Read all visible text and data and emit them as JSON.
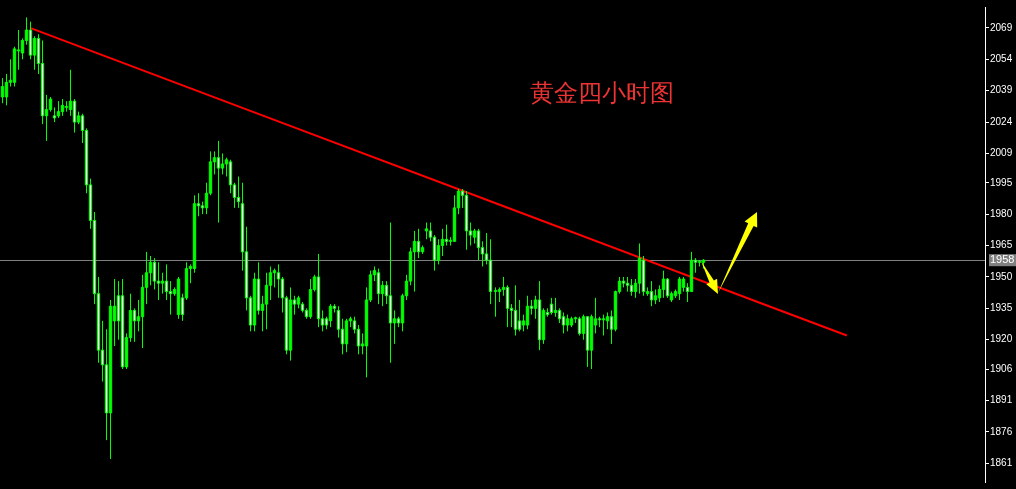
{
  "chart_data": {
    "type": "candlestick",
    "title": "黄金四小时图",
    "tick_labels": "y",
    "grid": false,
    "legend": false,
    "ylim": [
      1852,
      2079
    ],
    "yticks": [
      1861,
      1876,
      1891,
      1906,
      1920,
      1935,
      1950,
      1965,
      1980,
      1995,
      2009,
      2024,
      2039,
      2054,
      2069
    ],
    "ref_lines": [
      {
        "axis": "y",
        "value": 1958,
        "label": "1958",
        "color": "#808080"
      }
    ],
    "categories": [
      null,
      null,
      null,
      null,
      null,
      null,
      null,
      null,
      null,
      null,
      null,
      null,
      null,
      null,
      null,
      null,
      null,
      null,
      null,
      null,
      null,
      null,
      null,
      null,
      null,
      null,
      null,
      null,
      null,
      null,
      null,
      null,
      null,
      null,
      null,
      null,
      null,
      null,
      null,
      null,
      null,
      null,
      null,
      null,
      null,
      null,
      null,
      null,
      null,
      null,
      null,
      null,
      null,
      null,
      null,
      null,
      null,
      null,
      null,
      null,
      null,
      null,
      null,
      null,
      null,
      null,
      null,
      null,
      null,
      null,
      null,
      null,
      null,
      null,
      null,
      null,
      null,
      null,
      null,
      null,
      null,
      null,
      null,
      null,
      null,
      null,
      null,
      null,
      null,
      null,
      null,
      null,
      null,
      null,
      null,
      null,
      null,
      null,
      null,
      null,
      null,
      null,
      null,
      null,
      null,
      null,
      null,
      null,
      null,
      null,
      null,
      null,
      null,
      null,
      null,
      null,
      null,
      null,
      null,
      null,
      null,
      null,
      null,
      null,
      null,
      null,
      null,
      null,
      null,
      null,
      null,
      null,
      null,
      null,
      null,
      null,
      null,
      null,
      null,
      null,
      null,
      null,
      null,
      null,
      null,
      null,
      null,
      null,
      null,
      null,
      null,
      null,
      null,
      null,
      null,
      null,
      null,
      null,
      null,
      null,
      null,
      null,
      null,
      null,
      null,
      null,
      null,
      null,
      null,
      null,
      null,
      null,
      null,
      null,
      null,
      null,
      null,
      null,
      null,
      null,
      null,
      null,
      null,
      null,
      null,
      null,
      null,
      null,
      null,
      null,
      null,
      null,
      null,
      null,
      null,
      null,
      null,
      null,
      null,
      null,
      null,
      null,
      null,
      null,
      null,
      null,
      null,
      null,
      null,
      null,
      null,
      null,
      null,
      null,
      null,
      null,
      null,
      null,
      null,
      null,
      null,
      null,
      null,
      null,
      null,
      null,
      null,
      null,
      null,
      null,
      null,
      null,
      null,
      null,
      null,
      null,
      null,
      null,
      null,
      null,
      null,
      null,
      null,
      null,
      null,
      null
    ],
    "series": [
      {
        "type": "candlestick",
        "color": "#00ff00",
        "colors": [
          "#00ff00",
          "#00ff00",
          "#00ff00",
          "#00ff00",
          "#00ff00",
          "#00ff00",
          "#00ff00",
          "#ffffff",
          "#00ff00",
          "#ffffff",
          "#ffffff",
          "#00ff00",
          "#00ff00",
          "#ffffff",
          "#00ff00",
          "#00ff00",
          "#00ff00",
          "#00ff00",
          "#ffffff",
          "#00ff00",
          "#ffffff",
          "#ffffff",
          "#ffffff",
          "#ffffff",
          "#ffffff",
          "#ffffff",
          "#ffffff",
          "#00ff00",
          "#00ff00",
          "#ffffff",
          "#ffffff",
          "#00ff00",
          "#00ff00",
          "#ffffff",
          "#00ff00",
          "#00ff00",
          "#00ff00",
          "#00ff00",
          "#ffffff",
          "#ffffff",
          "#00ff00",
          "#ffffff",
          "#ffffff",
          "#00ff00",
          "#00ff00",
          "#ffffff",
          "#00ff00",
          "#00ff00",
          "#00ff00",
          "#ffffff",
          "#ffffff",
          "#00ff00",
          "#00ff00",
          "#00ff00",
          "#ffffff",
          "#00ff00",
          "#00ff00",
          "#ffffff",
          "#ffffff",
          "#ffffff",
          "#ffffff",
          "#ffffff",
          "#ffffff",
          "#00ff00",
          "#ffffff",
          "#00ff00",
          "#00ff00",
          "#00ff00",
          "#00ff00",
          "#ffffff",
          "#ffffff",
          "#ffffff",
          "#00ff00",
          "#ffffff",
          "#00ff00",
          "#ffffff",
          "#ffffff",
          "#00ff00",
          "#00ff00",
          "#ffffff",
          "#ffffff",
          "#ffffff",
          "#00ff00",
          "#ffffff",
          "#ffffff",
          "#ffffff",
          "#00ff00",
          "#00ff00",
          "#ffffff",
          "#ffffff",
          "#00ff00",
          "#00ff00",
          "#00ff00",
          "#00ff00",
          "#ffffff",
          "#00ff00",
          "#ffffff",
          "#ffffff",
          "#00ff00",
          "#ffffff",
          "#00ff00",
          "#00ff00",
          "#00ff00",
          "#00ff00",
          "#ffffff",
          "#00ff00",
          "#00ff00",
          "#ffffff",
          "#ffffff",
          "#00ff00",
          "#00ff00",
          "#ffffff",
          "#00ff00",
          "#00ff00",
          "#00ff00",
          "#ffffff",
          "#ffffff",
          "#ffffff",
          "#00ff00",
          "#ffffff",
          "#ffffff",
          "#ffffff",
          "#ffffff",
          "#00ff00",
          "#00ff00",
          "#00ff00",
          "#ffffff",
          "#ffffff",
          "#ffffff",
          "#ffffff",
          "#00ff00",
          "#00ff00",
          "#ffffff",
          "#00ff00",
          "#ffffff",
          "#00ff00",
          "#ffffff",
          "#ffffff",
          "#00ff00",
          "#ffffff",
          "#ffffff",
          "#00ff00",
          "#00ff00",
          "#00ff00",
          "#ffffff",
          "#00ff00",
          "#ffffff",
          "#00ff00",
          "#00ff00",
          "#ffffff",
          "#00ff00",
          "#00ff00",
          "#ffffff",
          "#00ff00",
          "#00ff00",
          "#ffffff",
          "#ffffff",
          "#ffffff",
          "#00ff00",
          "#00ff00",
          "#ffffff",
          "#00ff00",
          "#ffffff",
          "#00ff00",
          "#00ff00",
          "#00ff00",
          "#ffffff",
          "#00ff00",
          "#00ff00",
          "#00ff00",
          "#00ff00",
          "#ffffff",
          "#00ff00",
          "#ffffff",
          "#00ff00",
          "#00ff00",
          null,
          null,
          null,
          null,
          null,
          null,
          null,
          null,
          null,
          null,
          null,
          null,
          null,
          null,
          null,
          null,
          null,
          null,
          null,
          null,
          null,
          null,
          null,
          null,
          null,
          null,
          null,
          null,
          null,
          null,
          null,
          null,
          null,
          null,
          null,
          null,
          null,
          null,
          null,
          null,
          null,
          null,
          null,
          null,
          null,
          null,
          null,
          null,
          null,
          null,
          null,
          null,
          null,
          null,
          null,
          null,
          null,
          null,
          null,
          null,
          null,
          null,
          null,
          null,
          null,
          null,
          null,
          null,
          null,
          null
        ],
        "ohlc": [
          [
            2036,
            2045,
            2033,
            2041
          ],
          [
            2036,
            2047,
            2032,
            2043
          ],
          [
            2043,
            2054,
            2041,
            2044
          ],
          [
            2043,
            2060,
            2041,
            2059
          ],
          [
            2058,
            2068,
            2049,
            2058.5
          ],
          [
            2057,
            2064,
            2054,
            2063
          ],
          [
            2063,
            2074,
            2061,
            2068
          ],
          [
            2068,
            2072,
            2054,
            2056
          ],
          [
            2056,
            2065,
            2049,
            2064
          ],
          [
            2064,
            2066,
            2047,
            2052
          ],
          [
            2052,
            2063,
            2023,
            2027
          ],
          [
            2027,
            2037,
            2015,
            2030
          ],
          [
            2030,
            2036,
            2029,
            2035
          ],
          [
            2027,
            2031,
            2024,
            2026
          ],
          [
            2027,
            2034,
            2026,
            2029
          ],
          [
            2029,
            2035,
            2027,
            2032
          ],
          [
            2031,
            2034,
            2029,
            2031.5
          ],
          [
            2030,
            2049,
            2027,
            2034
          ],
          [
            2034,
            2035,
            2019,
            2024
          ],
          [
            2024,
            2029,
            2023,
            2027
          ],
          [
            2027,
            2028,
            2014,
            2020
          ],
          [
            2020,
            2021,
            1990,
            1994
          ],
          [
            1994,
            1997,
            1973,
            1977
          ],
          [
            1977,
            1981,
            1937,
            1942
          ],
          [
            1942,
            1950,
            1909,
            1915
          ],
          [
            1915,
            1929,
            1900,
            1908
          ],
          [
            1908,
            1925,
            1872,
            1885
          ],
          [
            1885,
            1939,
            1863,
            1936
          ],
          [
            1929,
            1949,
            1917,
            1936
          ],
          [
            1941,
            1948,
            1920,
            1929
          ],
          [
            1941,
            1949,
            1906,
            1907
          ],
          [
            1907,
            1923,
            1906,
            1921
          ],
          [
            1921,
            1942,
            1919,
            1934
          ],
          [
            1934,
            1935,
            1919,
            1929
          ],
          [
            1929,
            1939,
            1924,
            1931
          ],
          [
            1931,
            1951,
            1916,
            1945
          ],
          [
            1945,
            1962,
            1937,
            1952
          ],
          [
            1952,
            1960,
            1946,
            1957
          ],
          [
            1957,
            1959,
            1944,
            1948
          ],
          [
            1948,
            1957,
            1939,
            1947
          ],
          [
            1947,
            1952,
            1942,
            1948
          ],
          [
            1948,
            1956,
            1939,
            1943
          ],
          [
            1943,
            1948,
            1932,
            1942
          ],
          [
            1942,
            1945,
            1941,
            1944
          ],
          [
            1932,
            1950,
            1930,
            1949
          ],
          [
            1940,
            1942,
            1929,
            1932
          ],
          [
            1940,
            1957,
            1939,
            1954
          ],
          [
            1954,
            1956,
            1947,
            1955
          ],
          [
            1954,
            1989,
            1952,
            1985
          ],
          [
            1985,
            1990,
            1979,
            1984
          ],
          [
            1984,
            1986,
            1980,
            1983
          ],
          [
            1983,
            1995,
            1980,
            1990
          ],
          [
            1990,
            2010,
            1989,
            2005
          ],
          [
            2005,
            2010,
            1999,
            2007
          ],
          [
            2007,
            2015,
            1976,
            2002
          ],
          [
            2002,
            2009,
            1999,
            2004
          ],
          [
            2004,
            2007,
            1998,
            2006
          ],
          [
            2005,
            2006,
            1990,
            1994
          ],
          [
            1994,
            1995,
            1983,
            1988
          ],
          [
            1988,
            1998,
            1983,
            1986
          ],
          [
            1985,
            1995,
            1953,
            1962
          ],
          [
            1962,
            1974,
            1934,
            1940
          ],
          [
            1940,
            1941,
            1924,
            1927
          ],
          [
            1927,
            1952,
            1924,
            1949
          ],
          [
            1949,
            1957,
            1932,
            1934
          ],
          [
            1934,
            1941,
            1924,
            1937
          ],
          [
            1937,
            1952,
            1925,
            1946
          ],
          [
            1946,
            1955,
            1939,
            1952
          ],
          [
            1952,
            1954,
            1945,
            1953
          ],
          [
            1952,
            1956,
            1940,
            1949
          ],
          [
            1949,
            1950,
            1933,
            1940
          ],
          [
            1940,
            1941,
            1913,
            1915
          ],
          [
            1915,
            1945,
            1910,
            1939
          ],
          [
            1939,
            1941,
            1932,
            1937
          ],
          [
            1937,
            1941,
            1935,
            1940
          ],
          [
            1937,
            1938,
            1933,
            1934
          ],
          [
            1934,
            1935,
            1930,
            1931
          ],
          [
            1931,
            1949,
            1930,
            1944
          ],
          [
            1944,
            1951,
            1943,
            1950
          ],
          [
            1950,
            1961,
            1926,
            1930
          ],
          [
            1930,
            1934,
            1924,
            1927
          ],
          [
            1930,
            1931,
            1925,
            1927
          ],
          [
            1929,
            1937,
            1926,
            1936
          ],
          [
            1936,
            1937,
            1933,
            1935
          ],
          [
            1934,
            1936,
            1921,
            1925
          ],
          [
            1925,
            1930,
            1913,
            1918
          ],
          [
            1918,
            1930,
            1914,
            1929
          ],
          [
            1929,
            1931,
            1926,
            1930
          ],
          [
            1929,
            1931,
            1923,
            1925
          ],
          [
            1925,
            1927,
            1913,
            1917
          ],
          [
            1917,
            1923,
            1913,
            1918
          ],
          [
            1917,
            1945,
            1902,
            1939
          ],
          [
            1939,
            1953,
            1938,
            1951
          ],
          [
            1951,
            1955,
            1948,
            1953
          ],
          [
            1952,
            1954,
            1937,
            1942
          ],
          [
            1942,
            1948,
            1936,
            1946
          ],
          [
            1946,
            1948,
            1937,
            1941
          ],
          [
            1941,
            1976,
            1909,
            1928
          ],
          [
            1928,
            1934,
            1918,
            1930
          ],
          [
            1930,
            1931,
            1926,
            1928
          ],
          [
            1928,
            1942,
            1924,
            1941
          ],
          [
            1941,
            1951,
            1939,
            1948
          ],
          [
            1948,
            1964,
            1946,
            1962
          ],
          [
            1962,
            1972,
            1943,
            1967
          ],
          [
            1967,
            1973,
            1959,
            1962
          ],
          [
            1962,
            1965,
            1961,
            1964
          ],
          [
            1972,
            1976,
            1968,
            1973
          ],
          [
            1972,
            1976,
            1967,
            1969
          ],
          [
            1969,
            1970,
            1953,
            1958
          ],
          [
            1958,
            1968,
            1956,
            1965
          ],
          [
            1965,
            1973,
            1960,
            1968
          ],
          [
            1968,
            1975,
            1965,
            1967
          ],
          [
            1967,
            1969,
            1965,
            1967.5
          ],
          [
            1967,
            1989,
            1967,
            1983
          ],
          [
            1983,
            1992,
            1980,
            1991
          ],
          [
            1991,
            1992,
            1983,
            1989
          ],
          [
            1989,
            1991,
            1963,
            1972
          ],
          [
            1972,
            1976,
            1965,
            1970
          ],
          [
            1969,
            1973,
            1966,
            1972
          ],
          [
            1972,
            1973,
            1958,
            1964
          ],
          [
            1964,
            1967,
            1955,
            1961
          ],
          [
            1961,
            1971,
            1956,
            1958
          ],
          [
            1958,
            1968,
            1937,
            1943
          ],
          [
            1943,
            1945,
            1931,
            1943.5
          ],
          [
            1943,
            1945,
            1938,
            1944
          ],
          [
            1944,
            1950,
            1941,
            1945
          ],
          [
            1945,
            1946,
            1926,
            1935
          ],
          [
            1935,
            1937,
            1926,
            1934
          ],
          [
            1934,
            1946,
            1922,
            1925
          ],
          [
            1929,
            1939,
            1924,
            1925
          ],
          [
            1927,
            1932,
            1924,
            1929
          ],
          [
            1927,
            1941,
            1925,
            1936
          ],
          [
            1936,
            1939,
            1932,
            1935
          ],
          [
            1935,
            1941,
            1930,
            1939
          ],
          [
            1939,
            1948,
            1915,
            1920
          ],
          [
            1920,
            1935,
            1918,
            1934
          ],
          [
            1933,
            1935,
            1931,
            1932
          ],
          [
            1937,
            1940,
            1932,
            1933
          ],
          [
            1933,
            1940,
            1931,
            1934
          ],
          [
            1934,
            1935,
            1928,
            1930
          ],
          [
            1931,
            1933,
            1923,
            1927
          ],
          [
            1927,
            1932,
            1924,
            1930
          ],
          [
            1927,
            1931,
            1926,
            1930
          ],
          [
            1930,
            1931,
            1928,
            1930.5
          ],
          [
            1930,
            1931,
            1922,
            1923
          ],
          [
            1923,
            1932,
            1920,
            1931
          ],
          [
            1931,
            1931,
            1907,
            1915
          ],
          [
            1915,
            1932,
            1906,
            1931
          ],
          [
            1927,
            1940,
            1923,
            1930
          ],
          [
            1930,
            1931,
            1926,
            1929.5
          ],
          [
            1930,
            1932,
            1922,
            1930
          ],
          [
            1929,
            1933,
            1925,
            1931
          ],
          [
            1931,
            1934,
            1918,
            1925
          ],
          [
            1925,
            1943.5,
            1924,
            1943
          ],
          [
            1943,
            1950,
            1942,
            1948
          ],
          [
            1948,
            1950,
            1945,
            1947
          ],
          [
            1947,
            1950,
            1943,
            1946
          ],
          [
            1946,
            1949,
            1941,
            1943
          ],
          [
            1943,
            1949,
            1940,
            1947
          ],
          [
            1947,
            1966,
            1942,
            1959
          ],
          [
            1958,
            1960,
            1941,
            1943
          ],
          [
            1942,
            1945,
            1941,
            1943
          ],
          [
            1943,
            1948,
            1936,
            1939
          ],
          [
            1939,
            1944,
            1937,
            1941
          ],
          [
            1940,
            1946,
            1938,
            1944
          ],
          [
            1944,
            1953,
            1940,
            1949
          ],
          [
            1949,
            1949.5,
            1940,
            1941
          ],
          [
            1939,
            1943,
            1938,
            1942
          ],
          [
            1941,
            1944,
            1940,
            1943
          ],
          [
            1942,
            1950,
            1939,
            1949
          ],
          [
            1945,
            1950,
            1943,
            1949
          ],
          [
            1945,
            1947,
            1938,
            1943
          ],
          [
            1943,
            1962,
            1943,
            1958
          ],
          [
            1958,
            1959,
            1952,
            1957
          ],
          [
            1957,
            1958,
            1955,
            1957.5
          ],
          [
            1957,
            1958.5,
            1954,
            1958
          ],
          null,
          null,
          null,
          null,
          null,
          null,
          null,
          null,
          null,
          null,
          null,
          null,
          null,
          null,
          null,
          null,
          null,
          null,
          null,
          null,
          null,
          null,
          null,
          null,
          null,
          null,
          null,
          null,
          null,
          null,
          null,
          null,
          null,
          null,
          null,
          null,
          null,
          null,
          null,
          null,
          null,
          null,
          null,
          null,
          null,
          null,
          null,
          null,
          null,
          null,
          null,
          null,
          null,
          null,
          null,
          null,
          null,
          null,
          null,
          null,
          null,
          null,
          null,
          null,
          null,
          null,
          null,
          null,
          null,
          null
        ]
      },
      {
        "type": "line",
        "color": "#ff0000",
        "values": [
          null,
          null,
          null,
          null,
          null,
          null,
          null,
          2069,
          null,
          null,
          null,
          null,
          null,
          null,
          null,
          null,
          null,
          null,
          null,
          null,
          null,
          null,
          null,
          null,
          null,
          null,
          null,
          null,
          null,
          null,
          null,
          null,
          null,
          null,
          null,
          null,
          null,
          null,
          null,
          null,
          null,
          null,
          null,
          null,
          null,
          null,
          null,
          null,
          null,
          null,
          null,
          null,
          null,
          null,
          null,
          null,
          null,
          null,
          null,
          null,
          null,
          null,
          null,
          null,
          null,
          null,
          null,
          null,
          null,
          null,
          null,
          null,
          null,
          null,
          null,
          null,
          null,
          null,
          null,
          null,
          null,
          null,
          null,
          null,
          null,
          null,
          null,
          null,
          null,
          null,
          null,
          null,
          null,
          null,
          null,
          null,
          null,
          null,
          null,
          null,
          null,
          null,
          null,
          null,
          null,
          null,
          null,
          null,
          null,
          null,
          null,
          null,
          null,
          null,
          null,
          null,
          null,
          null,
          null,
          null,
          null,
          null,
          null,
          null,
          null,
          null,
          null,
          null,
          null,
          null,
          null,
          null,
          null,
          null,
          null,
          null,
          null,
          null,
          null,
          null,
          null,
          null,
          null,
          null,
          null,
          null,
          null,
          null,
          null,
          null,
          null,
          null,
          null,
          null,
          null,
          null,
          null,
          null,
          null,
          null,
          null,
          null,
          null,
          null,
          null,
          null,
          null,
          null,
          null,
          null,
          null,
          null,
          null,
          null,
          null,
          null,
          null,
          null,
          null,
          null,
          null,
          null,
          null,
          null,
          null,
          null,
          null,
          null,
          null,
          null,
          null,
          null,
          null,
          null,
          null,
          null,
          null,
          null,
          null,
          null,
          null,
          null,
          null,
          null,
          null,
          null,
          null,
          null,
          null,
          null,
          null,
          1922,
          null,
          null,
          null,
          null,
          null,
          null,
          null,
          null,
          null,
          null,
          null,
          null,
          null,
          null,
          null,
          null,
          null,
          null,
          null,
          null,
          null,
          null,
          null,
          null,
          null,
          null,
          null,
          null,
          null,
          null,
          null,
          null,
          null,
          null
        ]
      }
    ]
  }
}
